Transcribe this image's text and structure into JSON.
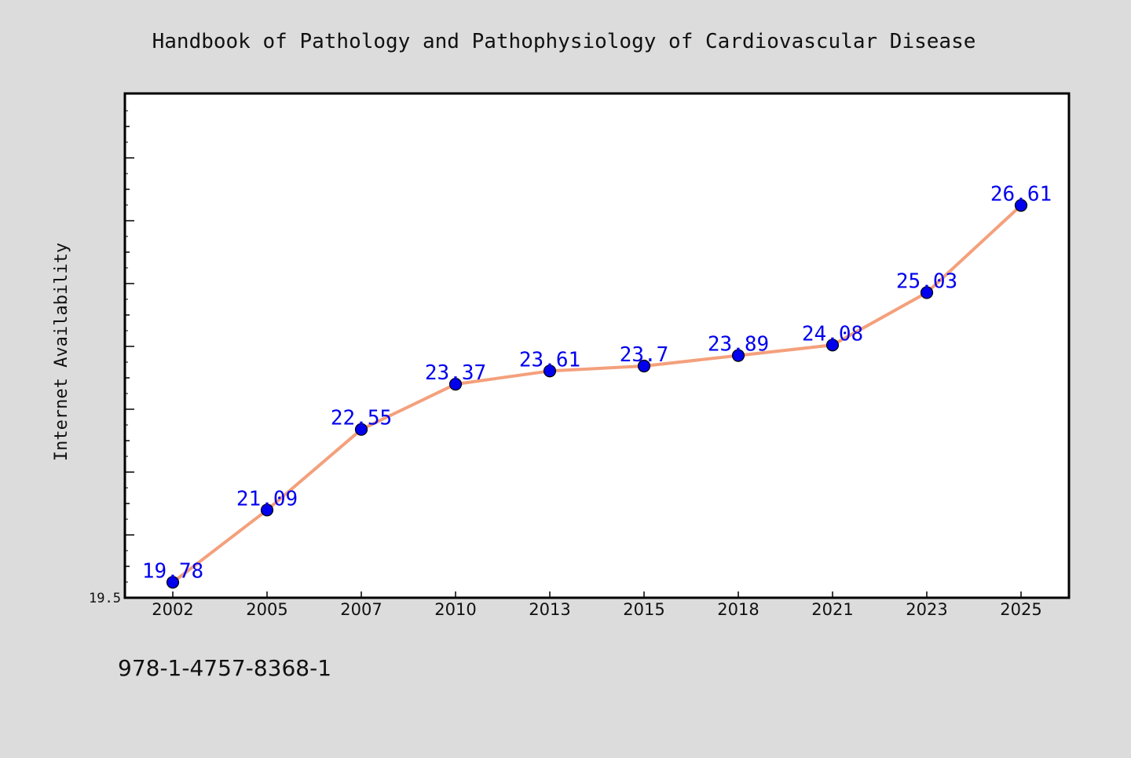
{
  "chart_data": {
    "type": "line",
    "title": "Handbook of Pathology and Pathophysiology of Cardiovascular Disease",
    "ylabel": "Internet Availability",
    "xlabel": "",
    "categories": [
      "2002",
      "2005",
      "2007",
      "2010",
      "2013",
      "2015",
      "2018",
      "2021",
      "2023",
      "2025"
    ],
    "values": [
      19.78,
      21.09,
      22.55,
      23.37,
      23.61,
      23.7,
      23.89,
      24.08,
      25.03,
      26.61
    ],
    "data_labels": [
      "19.78",
      "21.09",
      "22.55",
      "23.37",
      "23.61",
      "23.7",
      "23.89",
      "24.08",
      "25.03",
      "26.61"
    ],
    "y_tick_label": "19.5",
    "ylim": [
      19.5,
      27.5
    ],
    "grid": false,
    "colors": {
      "line": "#f4a07c",
      "marker": "#0000ee",
      "label": "#0000ee"
    }
  },
  "footer": {
    "isbn": "978-1-4757-8368-1"
  }
}
